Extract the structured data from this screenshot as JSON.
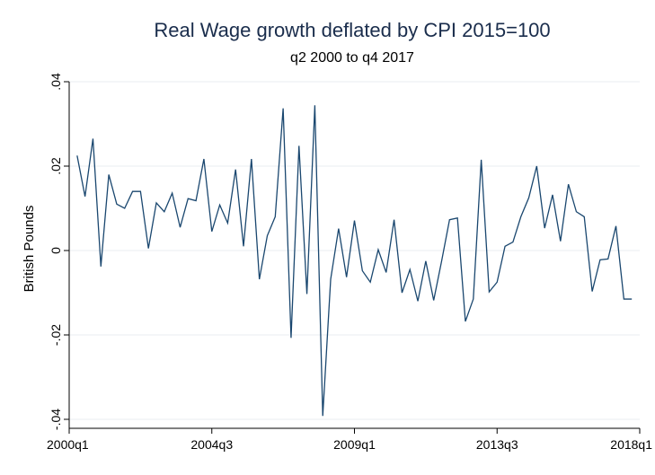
{
  "chart_data": {
    "type": "line",
    "title": "Real Wage growth deflated by CPI 2015=100",
    "subtitle": "q2 2000 to q4 2017",
    "ylabel": "British Pounds",
    "xlabel": "",
    "ylim": [
      -0.04,
      0.04
    ],
    "yticks": [
      {
        "value": 0.04,
        "label": ".04"
      },
      {
        "value": 0.02,
        "label": ".02"
      },
      {
        "value": 0,
        "label": "0"
      },
      {
        "value": -0.02,
        "label": "-.02"
      },
      {
        "value": -0.04,
        "label": "-.04"
      }
    ],
    "xticks": [
      {
        "value": 0,
        "label": "2000q1"
      },
      {
        "value": 18,
        "label": "2004q3"
      },
      {
        "value": 36,
        "label": "2009q1"
      },
      {
        "value": 54,
        "label": "2013q3"
      },
      {
        "value": 72,
        "label": "2018q1"
      }
    ],
    "grid": true,
    "line_color": "#1a476f",
    "series": [
      {
        "x": [
          1,
          2,
          3,
          4,
          5,
          6,
          7,
          8,
          9,
          10,
          11,
          12,
          13,
          14,
          15,
          16,
          17,
          18,
          19,
          20,
          21,
          22,
          23,
          24,
          25,
          26,
          27,
          28,
          29,
          30,
          31,
          32,
          33,
          34,
          35,
          36,
          37,
          38,
          39,
          40,
          41,
          42,
          43,
          44,
          45,
          46,
          47,
          48,
          49,
          50,
          51,
          52,
          53,
          54,
          55,
          56,
          57,
          58,
          59,
          60,
          61,
          62,
          63,
          64,
          65,
          66,
          67,
          68,
          69,
          70,
          71
        ],
        "values": [
          0.0225,
          0.0128,
          0.0265,
          -0.0038,
          0.018,
          0.011,
          0.01,
          0.014,
          0.014,
          0.0005,
          0.0113,
          0.0092,
          0.0136,
          0.0055,
          0.0123,
          0.0118,
          0.0217,
          0.0045,
          0.0108,
          0.0065,
          0.0192,
          0.001,
          0.0217,
          -0.0068,
          0.0035,
          0.008,
          0.0337,
          -0.0207,
          0.0248,
          -0.0103,
          0.0344,
          -0.0392,
          -0.0068,
          0.0052,
          -0.0063,
          0.0071,
          -0.0048,
          -0.0075,
          0.0002,
          -0.0052,
          0.0073,
          -0.01,
          -0.0045,
          -0.012,
          -0.0025,
          -0.0118,
          -0.0025,
          0.0073,
          0.0077,
          -0.0168,
          -0.0115,
          0.0215,
          -0.0098,
          -0.0075,
          0.001,
          0.002,
          0.008,
          0.0125,
          0.02,
          0.0053,
          0.0132,
          0.0022,
          0.0157,
          0.0092,
          0.008,
          -0.0097,
          -0.0022,
          -0.002,
          0.0058,
          -0.0115,
          -0.0115
        ]
      }
    ]
  }
}
